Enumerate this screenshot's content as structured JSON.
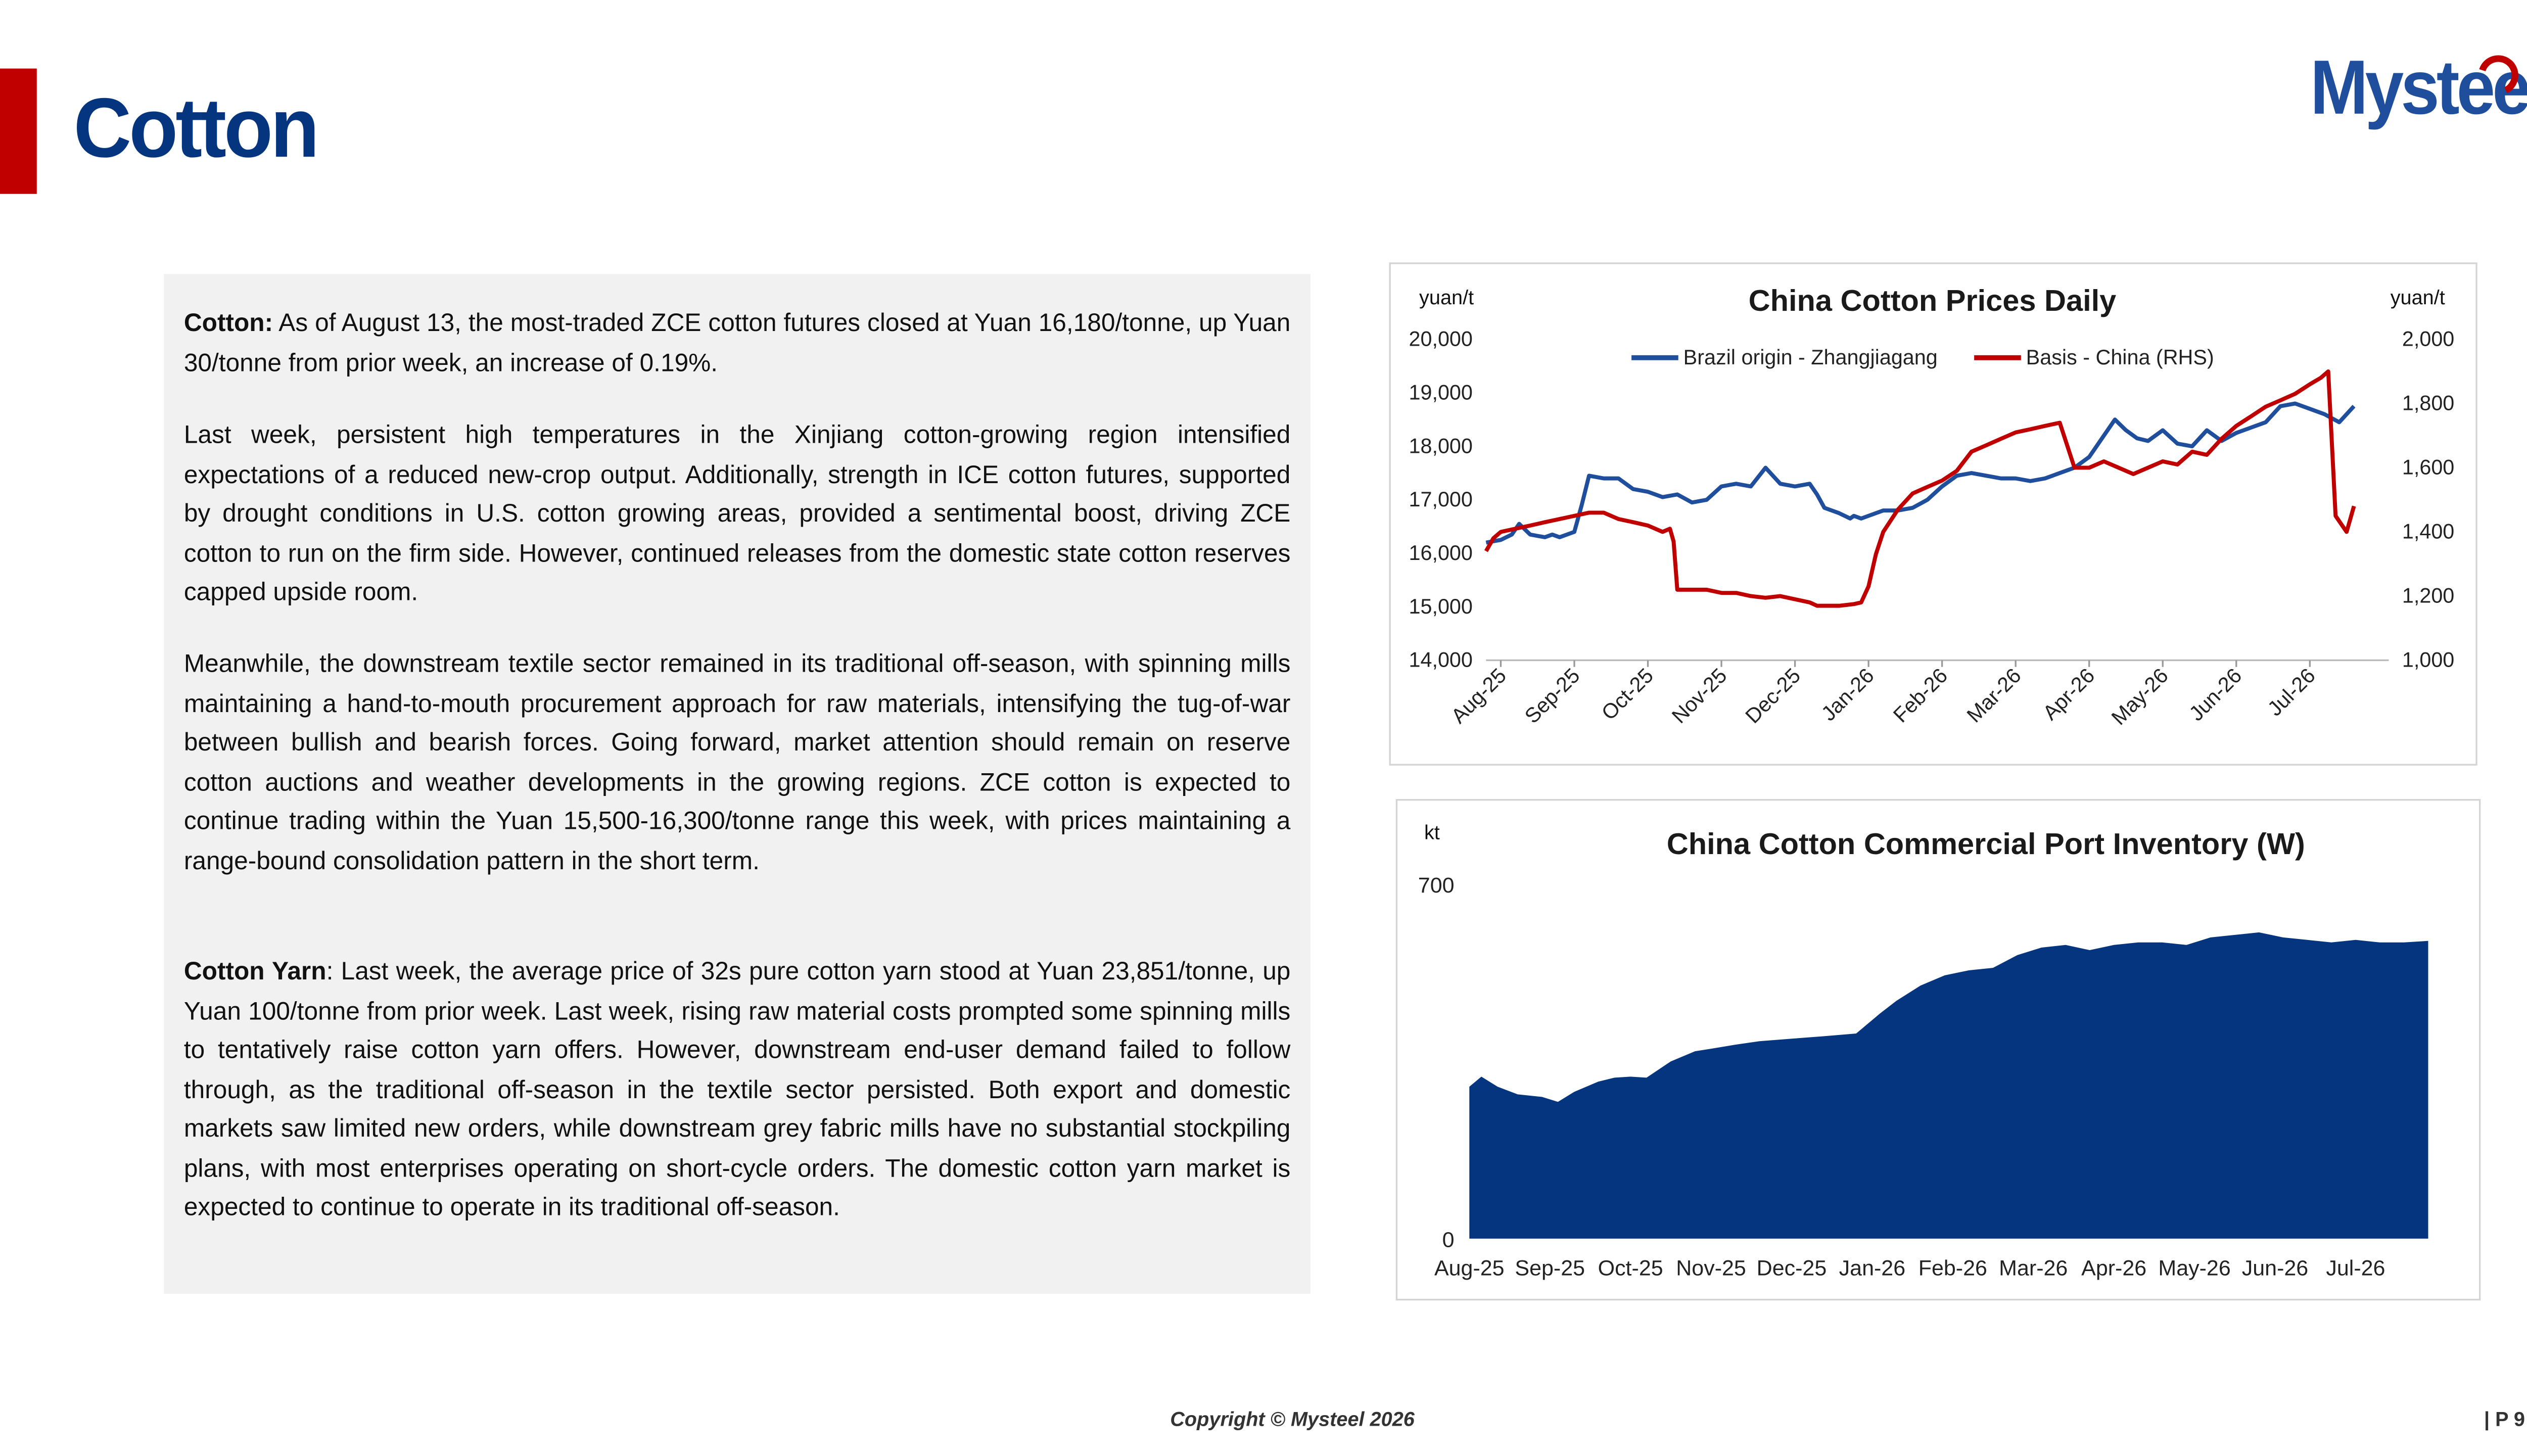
{
  "header": {
    "title": "Cotton",
    "logo_text": "Mysteel"
  },
  "text": {
    "p1_label": "Cotton:",
    "p1_body": " As of August 13, the most-traded ZCE cotton futures closed at Yuan 16,180/tonne, up Yuan 30/tonne from prior week, an increase of 0.19%.",
    "p2": "Last week, persistent high temperatures in the Xinjiang cotton-growing region intensified expectations of a reduced new-crop output. Additionally, strength in ICE cotton futures, supported by drought conditions in U.S. cotton growing areas, provided a sentimental boost, driving ZCE cotton to run on the firm side. However, continued releases from the domestic state cotton reserves capped upside room.",
    "p3": "Meanwhile, the downstream textile sector remained in its traditional off-season, with spinning mills maintaining a hand-to-mouth procurement approach for raw materials, intensifying the tug-of-war between bullish and bearish forces. Going forward, market attention should remain on reserve cotton auctions and weather developments in the growing regions. ZCE cotton is expected to continue trading within the Yuan 15,500-16,300/tonne range this week, with prices maintaining a range-bound consolidation pattern in the short term.",
    "p4_label": "Cotton Yarn",
    "p4_body": ": Last week, the average price of 32s pure cotton yarn stood at Yuan 23,851/tonne, up Yuan 100/tonne from prior week. Last week, rising raw material costs prompted some spinning mills to tentatively raise cotton yarn offers. However, downstream end-user demand failed to follow through, as the traditional off-season in the textile sector persisted. Both export and domestic markets saw limited new orders, while downstream grey fabric mills have no substantial stockpiling plans, with most enterprises operating on short-cycle orders. The domestic cotton yarn market is expected to continue to operate in its traditional off-season."
  },
  "chart_data": [
    {
      "type": "line",
      "title": "China Cotton Prices Daily",
      "ylabel_left": "yuan/t",
      "ylabel_right": "yuan/t",
      "ylim_left": [
        14000,
        20000
      ],
      "ylim_right": [
        1000,
        2000
      ],
      "yticks_left": [
        "14,000",
        "15,000",
        "16,000",
        "17,000",
        "18,000",
        "19,000",
        "20,000"
      ],
      "yticks_right": [
        "1,000",
        "1,200",
        "1,400",
        "1,600",
        "1,800",
        "2,000"
      ],
      "categories": [
        "Aug-25",
        "Sep-25",
        "Oct-25",
        "Nov-25",
        "Dec-25",
        "Jan-26",
        "Feb-26",
        "Mar-26",
        "Apr-26",
        "May-26",
        "Jun-26",
        "Jul-26"
      ],
      "legend_position": "top",
      "series": [
        {
          "name": "Brazil origin - Zhangjiagang",
          "axis": "left",
          "color": "#1f4e9c",
          "x": [
            0,
            0.2,
            0.35,
            0.45,
            0.6,
            0.8,
            0.9,
            1.0,
            1.2,
            1.3,
            1.4,
            1.6,
            1.8,
            2.0,
            2.2,
            2.4,
            2.6,
            2.8,
            3.0,
            3.2,
            3.4,
            3.6,
            3.8,
            4.0,
            4.2,
            4.4,
            4.5,
            4.6,
            4.8,
            4.95,
            5.0,
            5.1,
            5.2,
            5.4,
            5.6,
            5.8,
            6.0,
            6.2,
            6.4,
            6.6,
            6.8,
            7.0,
            7.2,
            7.4,
            7.6,
            7.8,
            8.0,
            8.2,
            8.4,
            8.55,
            8.7,
            8.85,
            9.0,
            9.2,
            9.4,
            9.6,
            9.8,
            10.0,
            10.2,
            10.4,
            10.6,
            10.8,
            11.0,
            11.2,
            11.4,
            11.6,
            11.8
          ],
          "values": [
            16200,
            16250,
            16350,
            16550,
            16350,
            16300,
            16350,
            16300,
            16400,
            16900,
            17450,
            17400,
            17400,
            17200,
            17150,
            17050,
            17100,
            16950,
            17000,
            17250,
            17300,
            17250,
            17600,
            17300,
            17250,
            17300,
            17100,
            16850,
            16750,
            16650,
            16700,
            16650,
            16700,
            16800,
            16800,
            16850,
            17000,
            17250,
            17450,
            17500,
            17450,
            17400,
            17400,
            17350,
            17400,
            17500,
            17600,
            17800,
            18200,
            18500,
            18300,
            18150,
            18100,
            18300,
            18050,
            18000,
            18300,
            18100,
            18250,
            18350,
            18450,
            18750,
            18800,
            18700,
            18600,
            18450,
            18750
          ]
        },
        {
          "name": "Basis - China (RHS)",
          "axis": "right",
          "color": "#c00000",
          "x": [
            0,
            0.1,
            0.2,
            0.4,
            0.6,
            0.8,
            1.0,
            1.2,
            1.4,
            1.6,
            1.8,
            2.0,
            2.2,
            2.4,
            2.5,
            2.55,
            2.6,
            2.8,
            3.0,
            3.2,
            3.4,
            3.6,
            3.8,
            4.0,
            4.2,
            4.4,
            4.5,
            4.6,
            4.8,
            5.0,
            5.1,
            5.2,
            5.3,
            5.4,
            5.6,
            5.8,
            6.0,
            6.2,
            6.4,
            6.6,
            6.8,
            7.0,
            7.2,
            7.4,
            7.6,
            7.8,
            8.0,
            8.2,
            8.4,
            8.6,
            8.8,
            9.0,
            9.2,
            9.4,
            9.6,
            9.8,
            10.0,
            10.2,
            10.4,
            10.6,
            10.8,
            11.0,
            11.2,
            11.35,
            11.45,
            11.55,
            11.7,
            11.8
          ],
          "values": [
            1340,
            1380,
            1400,
            1410,
            1420,
            1430,
            1440,
            1450,
            1460,
            1460,
            1440,
            1430,
            1420,
            1400,
            1410,
            1370,
            1220,
            1220,
            1220,
            1210,
            1210,
            1200,
            1195,
            1200,
            1190,
            1180,
            1170,
            1170,
            1170,
            1175,
            1180,
            1230,
            1330,
            1400,
            1470,
            1520,
            1540,
            1560,
            1590,
            1650,
            1670,
            1690,
            1710,
            1720,
            1730,
            1740,
            1600,
            1600,
            1620,
            1600,
            1580,
            1600,
            1620,
            1610,
            1650,
            1640,
            1690,
            1730,
            1760,
            1790,
            1810,
            1830,
            1860,
            1880,
            1900,
            1450,
            1400,
            1480
          ]
        }
      ]
    },
    {
      "type": "area",
      "title": "China Cotton Commercial Port Inventory (W)",
      "ylabel": "kt",
      "ylim": [
        0,
        700
      ],
      "yticks": [
        "0",
        "700"
      ],
      "categories": [
        "Aug-25",
        "Sep-25",
        "Oct-25",
        "Nov-25",
        "Dec-25",
        "Jan-26",
        "Feb-26",
        "Mar-26",
        "Apr-26",
        "May-26",
        "Jun-26",
        "Jul-26"
      ],
      "series": [
        {
          "name": "",
          "color": "#063580",
          "x": [
            0,
            0.15,
            0.35,
            0.6,
            0.9,
            1.1,
            1.3,
            1.6,
            1.8,
            2.0,
            2.2,
            2.5,
            2.8,
            3.0,
            3.3,
            3.6,
            4.0,
            4.4,
            4.8,
            5.1,
            5.3,
            5.6,
            5.9,
            6.2,
            6.5,
            6.8,
            7.1,
            7.4,
            7.7,
            8.0,
            8.3,
            8.6,
            8.9,
            9.2,
            9.5,
            9.8,
            10.1,
            10.4,
            10.7,
            11.0,
            11.3,
            11.6,
            11.9
          ],
          "values": [
            300,
            320,
            300,
            285,
            280,
            270,
            290,
            310,
            318,
            320,
            318,
            350,
            370,
            375,
            383,
            390,
            395,
            400,
            405,
            445,
            470,
            500,
            520,
            530,
            535,
            560,
            575,
            580,
            570,
            580,
            585,
            585,
            580,
            595,
            600,
            605,
            595,
            590,
            585,
            590,
            585,
            585,
            588
          ]
        }
      ]
    }
  ],
  "footer": {
    "copyright": "Copyright © Mysteel 2026",
    "page": "| P 9"
  }
}
